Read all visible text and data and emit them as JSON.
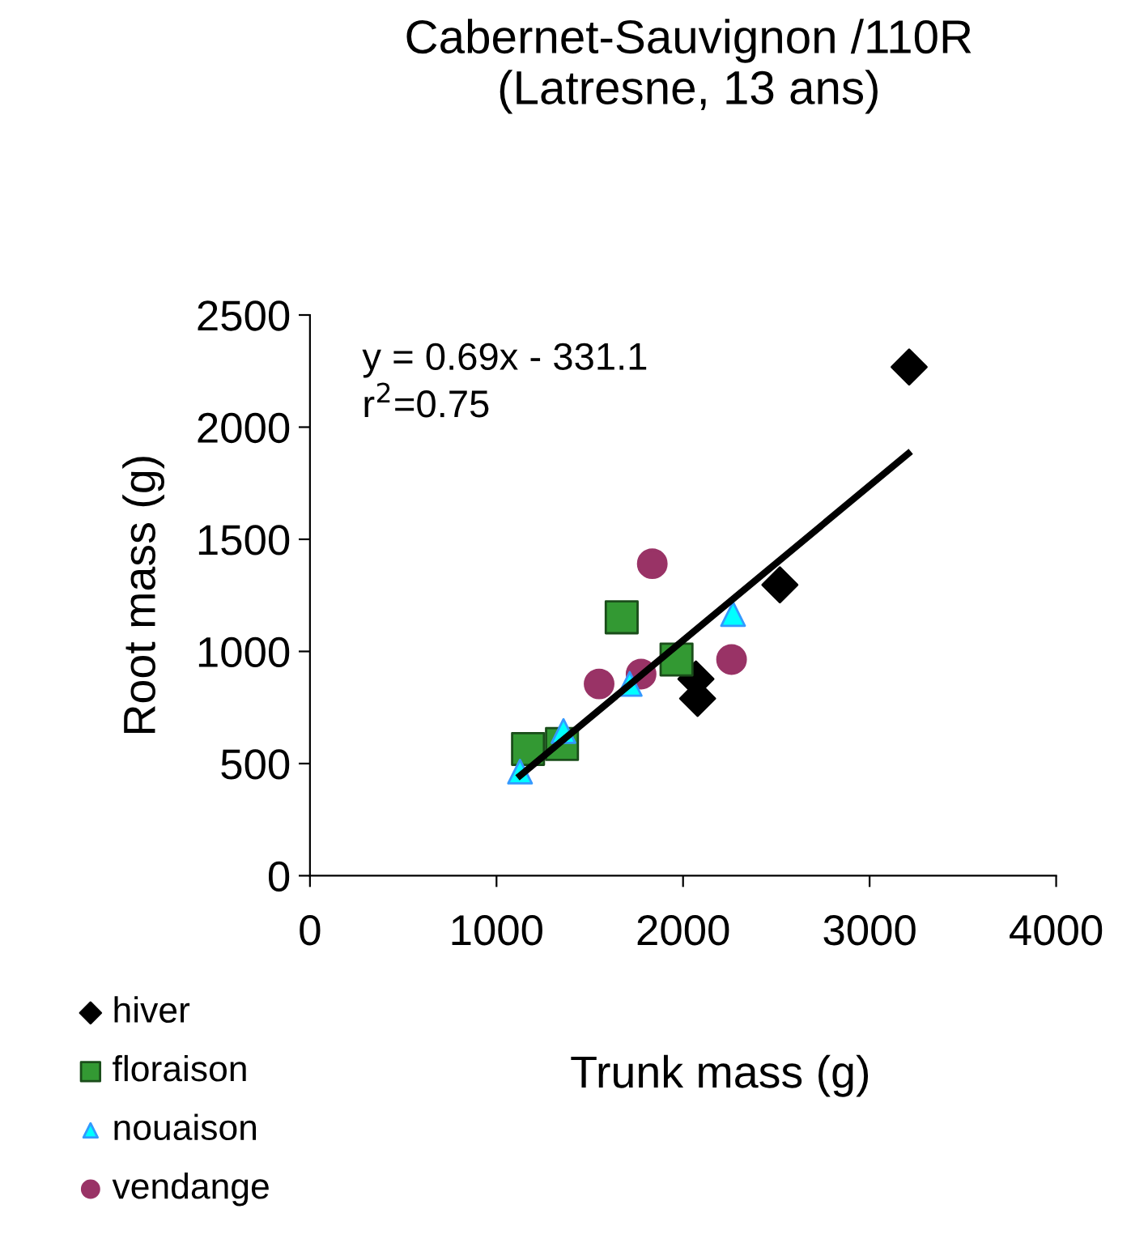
{
  "chart_data": {
    "type": "scatter",
    "title": "Cabernet-Sauvignon /110R\n(Latresne, 13 ans)",
    "xlabel": "Trunk mass (g)",
    "ylabel": "Root mass (g)",
    "xlim": [
      0,
      4000
    ],
    "ylim": [
      0,
      2500
    ],
    "xticks": [
      0,
      1000,
      2000,
      3000,
      4000
    ],
    "yticks": [
      0,
      500,
      1000,
      1500,
      2000,
      2500
    ],
    "grid": false,
    "legend": "bottom left",
    "annotations": [
      "y = 0.69x - 331.1",
      "r$^{2}$=0.75"
    ],
    "series": [
      {
        "name": "hiver",
        "color": "#000000",
        "marker": "diamond",
        "x": [
          3212,
          2519,
          2069,
          2078
        ],
        "values": [
          2268,
          1297,
          877,
          790
        ]
      },
      {
        "name": "floraison",
        "color": "#339933",
        "marker": "square",
        "x": [
          1671,
          1965,
          1169,
          1351
        ],
        "values": [
          1152,
          964,
          565,
          587
        ]
      },
      {
        "name": "nouaison",
        "color": "#00ffff",
        "marker": "triangle",
        "x": [
          2268,
          1714,
          1359,
          1126
        ],
        "values": [
          1167,
          855,
          645,
          464
        ]
      },
      {
        "name": "vendange",
        "color": "#993366",
        "marker": "circle",
        "x": [
          1835,
          1550,
          1775,
          2260
        ],
        "values": [
          1391,
          855,
          899,
          964
        ]
      },
      {
        "type": "line",
        "color": "#000000",
        "marker": "none",
        "line_style": "solid",
        "x": [
          1126,
          3207
        ],
        "values": [
          446,
          1882
        ]
      }
    ]
  }
}
